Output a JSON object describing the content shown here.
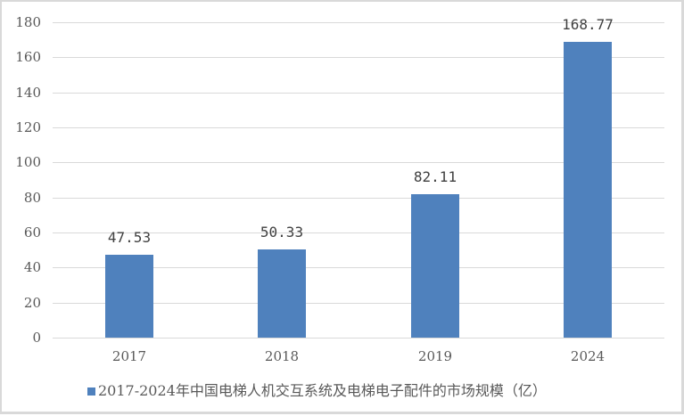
{
  "chart_data": {
    "type": "bar",
    "title": "",
    "categories": [
      "2017",
      "2018",
      "2019",
      "2024"
    ],
    "series": [
      {
        "name": "2017-2024年中国电梯人机交互系统及电梯电子配件的市场规模（亿）",
        "values": [
          47.53,
          50.33,
          82.11,
          168.77
        ],
        "color": "#4f81bd"
      }
    ],
    "data_labels": [
      "47.53",
      "50.33",
      "82.11",
      "168.77"
    ],
    "xlabel": "",
    "ylabel": "",
    "ylim": [
      0,
      180
    ],
    "yticks": [
      "0",
      "20",
      "40",
      "60",
      "80",
      "100",
      "120",
      "140",
      "160",
      "180"
    ],
    "grid": true,
    "legend_position": "bottom"
  },
  "legend": {
    "label": "2017-2024年中国电梯人机交互系统及电梯电子配件的市场规模（亿）"
  }
}
